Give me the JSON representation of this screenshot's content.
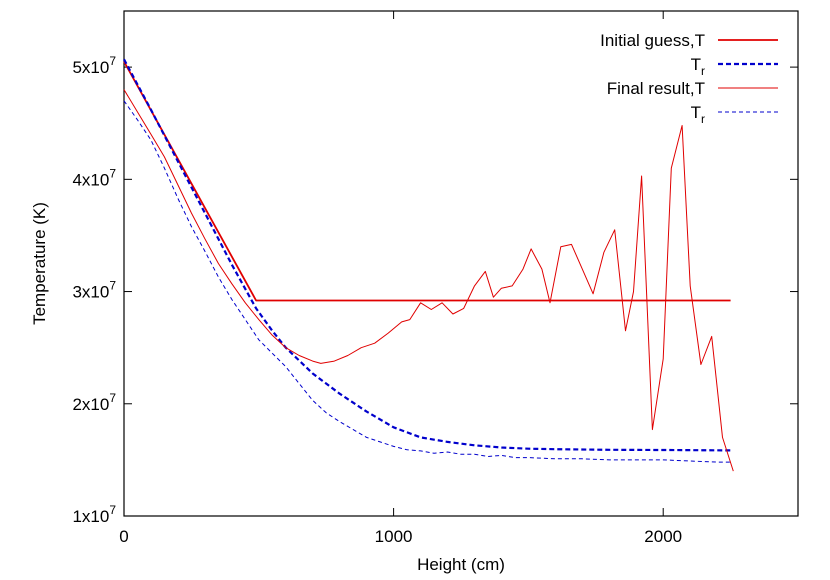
{
  "chart_data": {
    "type": "line",
    "title": "",
    "xlabel": "Height (cm)",
    "ylabel": "Temperature (K)",
    "xlim": [
      0,
      2500
    ],
    "ylim": [
      10000000,
      55000000
    ],
    "x_ticks": [
      {
        "value": 0,
        "label": "0"
      },
      {
        "value": 1000,
        "label": "1000"
      },
      {
        "value": 2000,
        "label": "2000"
      }
    ],
    "y_ticks": [
      {
        "value": 10000000,
        "base": "1x10",
        "exp": "7"
      },
      {
        "value": 20000000,
        "base": "2x10",
        "exp": "7"
      },
      {
        "value": 30000000,
        "base": "3x10",
        "exp": "7"
      },
      {
        "value": 40000000,
        "base": "4x10",
        "exp": "7"
      },
      {
        "value": 50000000,
        "base": "5x10",
        "exp": "7"
      }
    ],
    "legend_position": "top-right",
    "legend_groups": [
      {
        "prefix": "Initial guess,",
        "series": [
          0,
          1
        ]
      },
      {
        "prefix": "Final result,",
        "series": [
          2,
          3
        ]
      }
    ],
    "series": [
      {
        "name": "T",
        "sub": "",
        "color": "#e00000",
        "style": "solid",
        "width": 1.8,
        "points": [
          [
            0,
            50500000
          ],
          [
            490,
            29200000
          ],
          [
            2250,
            29200000
          ]
        ]
      },
      {
        "name": "T",
        "sub": "r",
        "color": "#0000cc",
        "style": "dashed",
        "width": 2.2,
        "points": [
          [
            0,
            50700000
          ],
          [
            100,
            46200000
          ],
          [
            200,
            41600000
          ],
          [
            300,
            37000000
          ],
          [
            400,
            32400000
          ],
          [
            490,
            28500000
          ],
          [
            550,
            26500000
          ],
          [
            600,
            25000000
          ],
          [
            700,
            22700000
          ],
          [
            800,
            20900000
          ],
          [
            900,
            19300000
          ],
          [
            1000,
            17900000
          ],
          [
            1100,
            17000000
          ],
          [
            1200,
            16600000
          ],
          [
            1300,
            16300000
          ],
          [
            1400,
            16100000
          ],
          [
            1500,
            16000000
          ],
          [
            1600,
            15950000
          ],
          [
            1800,
            15900000
          ],
          [
            2000,
            15880000
          ],
          [
            2250,
            15850000
          ]
        ]
      },
      {
        "name": "T",
        "sub": "",
        "color": "#e00000",
        "style": "solid",
        "width": 1.0,
        "points": [
          [
            0,
            48000000
          ],
          [
            50,
            46000000
          ],
          [
            100,
            44000000
          ],
          [
            150,
            42000000
          ],
          [
            200,
            39500000
          ],
          [
            250,
            37000000
          ],
          [
            300,
            34700000
          ],
          [
            350,
            32500000
          ],
          [
            400,
            30700000
          ],
          [
            450,
            29000000
          ],
          [
            500,
            27500000
          ],
          [
            550,
            26100000
          ],
          [
            600,
            25000000
          ],
          [
            650,
            24300000
          ],
          [
            700,
            23800000
          ],
          [
            730,
            23600000
          ],
          [
            780,
            23800000
          ],
          [
            830,
            24300000
          ],
          [
            880,
            25000000
          ],
          [
            930,
            25400000
          ],
          [
            980,
            26300000
          ],
          [
            1030,
            27300000
          ],
          [
            1060,
            27500000
          ],
          [
            1100,
            29000000
          ],
          [
            1140,
            28400000
          ],
          [
            1180,
            29000000
          ],
          [
            1220,
            28000000
          ],
          [
            1260,
            28500000
          ],
          [
            1300,
            30500000
          ],
          [
            1340,
            31800000
          ],
          [
            1370,
            29500000
          ],
          [
            1400,
            30300000
          ],
          [
            1440,
            30500000
          ],
          [
            1480,
            32000000
          ],
          [
            1510,
            33800000
          ],
          [
            1550,
            32000000
          ],
          [
            1580,
            29000000
          ],
          [
            1620,
            34000000
          ],
          [
            1660,
            34200000
          ],
          [
            1700,
            32000000
          ],
          [
            1740,
            29800000
          ],
          [
            1780,
            33500000
          ],
          [
            1820,
            35500000
          ],
          [
            1860,
            26500000
          ],
          [
            1890,
            30000000
          ],
          [
            1920,
            40300000
          ],
          [
            1960,
            17700000
          ],
          [
            2000,
            24000000
          ],
          [
            2030,
            41000000
          ],
          [
            2070,
            44800000
          ],
          [
            2100,
            30500000
          ],
          [
            2140,
            23500000
          ],
          [
            2180,
            26000000
          ],
          [
            2220,
            17000000
          ],
          [
            2260,
            14000000
          ]
        ]
      },
      {
        "name": "T",
        "sub": "r",
        "color": "#0000cc",
        "style": "dashed",
        "width": 1.0,
        "points": [
          [
            0,
            47000000
          ],
          [
            50,
            45300000
          ],
          [
            100,
            43500000
          ],
          [
            150,
            41000000
          ],
          [
            200,
            38300000
          ],
          [
            250,
            35800000
          ],
          [
            300,
            33600000
          ],
          [
            350,
            31300000
          ],
          [
            400,
            29300000
          ],
          [
            450,
            27500000
          ],
          [
            500,
            25700000
          ],
          [
            550,
            24500000
          ],
          [
            600,
            23300000
          ],
          [
            650,
            21800000
          ],
          [
            700,
            20300000
          ],
          [
            750,
            19200000
          ],
          [
            800,
            18400000
          ],
          [
            850,
            17700000
          ],
          [
            900,
            17000000
          ],
          [
            950,
            16600000
          ],
          [
            1000,
            16200000
          ],
          [
            1050,
            15900000
          ],
          [
            1100,
            15800000
          ],
          [
            1150,
            15600000
          ],
          [
            1200,
            15700000
          ],
          [
            1250,
            15500000
          ],
          [
            1300,
            15500000
          ],
          [
            1350,
            15300000
          ],
          [
            1400,
            15400000
          ],
          [
            1450,
            15200000
          ],
          [
            1500,
            15200000
          ],
          [
            1600,
            15100000
          ],
          [
            1700,
            15100000
          ],
          [
            1800,
            15000000
          ],
          [
            1900,
            15000000
          ],
          [
            2000,
            15000000
          ],
          [
            2100,
            14900000
          ],
          [
            2200,
            14800000
          ],
          [
            2250,
            14800000
          ]
        ]
      }
    ]
  }
}
